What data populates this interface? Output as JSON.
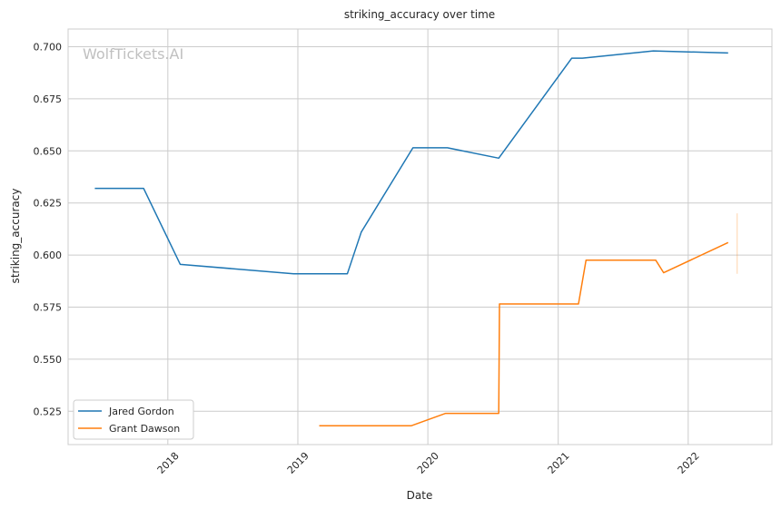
{
  "chart_data": {
    "type": "line",
    "title": "striking_accuracy over time",
    "xlabel": "Date",
    "ylabel": "striking_accuracy",
    "watermark": "WolfTickets.AI",
    "xlim": [
      "2017-03-27",
      "2022-08-24"
    ],
    "ylim": [
      0.509,
      0.7085
    ],
    "x_ticks": [
      "2018",
      "2019",
      "2020",
      "2021",
      "2022"
    ],
    "y_ticks": [
      "0.525",
      "0.550",
      "0.575",
      "0.600",
      "0.625",
      "0.650",
      "0.675",
      "0.700"
    ],
    "grid": true,
    "legend_position": "lower-left",
    "series": [
      {
        "name": "Jared Gordon",
        "color": "#1f77b4",
        "points": [
          [
            "2017-06-10",
            0.632
          ],
          [
            "2017-10-25",
            0.632
          ],
          [
            "2018-02-05",
            0.5955
          ],
          [
            "2018-12-20",
            0.591
          ],
          [
            "2019-05-20",
            0.591
          ],
          [
            "2019-06-28",
            0.611
          ],
          [
            "2019-11-20",
            0.6515
          ],
          [
            "2020-02-25",
            0.6515
          ],
          [
            "2020-07-18",
            0.6465
          ],
          [
            "2021-02-08",
            0.6945
          ],
          [
            "2021-03-10",
            0.6945
          ],
          [
            "2021-09-25",
            0.698
          ],
          [
            "2022-04-23",
            0.697
          ]
        ]
      },
      {
        "name": "Grant Dawson",
        "color": "#ff7f0e",
        "points": [
          [
            "2019-03-02",
            0.518
          ],
          [
            "2019-11-15",
            0.518
          ],
          [
            "2020-02-20",
            0.524
          ],
          [
            "2020-07-18",
            0.524
          ],
          [
            "2020-07-20",
            0.5765
          ],
          [
            "2021-02-27",
            0.5765
          ],
          [
            "2021-03-20",
            0.5975
          ],
          [
            "2021-10-02",
            0.5975
          ],
          [
            "2021-10-24",
            0.5915
          ],
          [
            "2022-04-23",
            0.606
          ]
        ],
        "error_bar": {
          "x": "2022-04-23",
          "low": 0.591,
          "high": 0.62
        }
      }
    ]
  }
}
